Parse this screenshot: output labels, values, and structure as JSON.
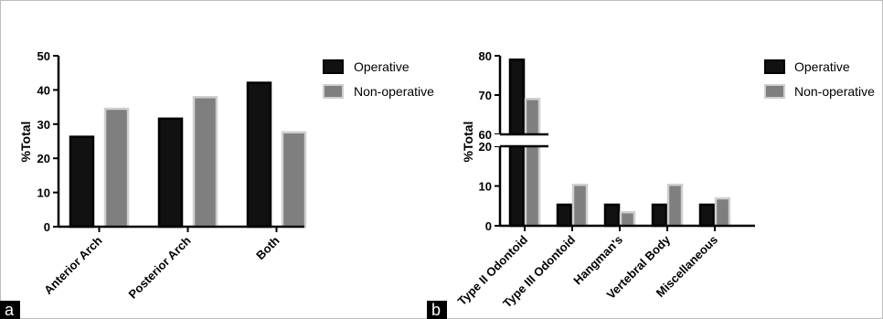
{
  "chart_data": [
    {
      "type": "bar",
      "panel_label": "a",
      "categories": [
        "Anterior Arch",
        "Posterior Arch",
        "Both"
      ],
      "series": [
        {
          "name": "Operative",
          "values": [
            26.3,
            31.6,
            42.1
          ],
          "fill": "#111111",
          "stroke": "#000000"
        },
        {
          "name": "Non-operative",
          "values": [
            34.5,
            37.9,
            27.6
          ],
          "fill": "#7f7f7f",
          "stroke": "#cfcfcf"
        }
      ],
      "ylabel": "%Total",
      "xlabel": "",
      "ylim": [
        0,
        50
      ],
      "yticks": [
        "0",
        "10",
        "20",
        "30",
        "40",
        "50"
      ],
      "grid": false,
      "legend_position": "right"
    },
    {
      "type": "bar",
      "panel_label": "b",
      "categories": [
        "Type II Odontoid",
        "Type III Odontoid",
        "Hangman's",
        "Vertebral Body",
        "Miscellaneous"
      ],
      "series": [
        {
          "name": "Operative",
          "values": [
            79,
            5.3,
            5.3,
            5.3,
            5.3
          ],
          "fill": "#111111",
          "stroke": "#000000"
        },
        {
          "name": "Non-operative",
          "values": [
            69,
            10.3,
            3.4,
            10.3,
            6.9
          ],
          "fill": "#7f7f7f",
          "stroke": "#cfcfcf"
        }
      ],
      "ylabel": "%Total",
      "xlabel": "",
      "ylim_lower": [
        0,
        20
      ],
      "ylim_upper": [
        60,
        80
      ],
      "broken_axis": true,
      "yticks_lower": [
        "0",
        "10",
        "20"
      ],
      "yticks_upper": [
        "60",
        "70",
        "80"
      ],
      "grid": false,
      "legend_position": "right"
    }
  ]
}
